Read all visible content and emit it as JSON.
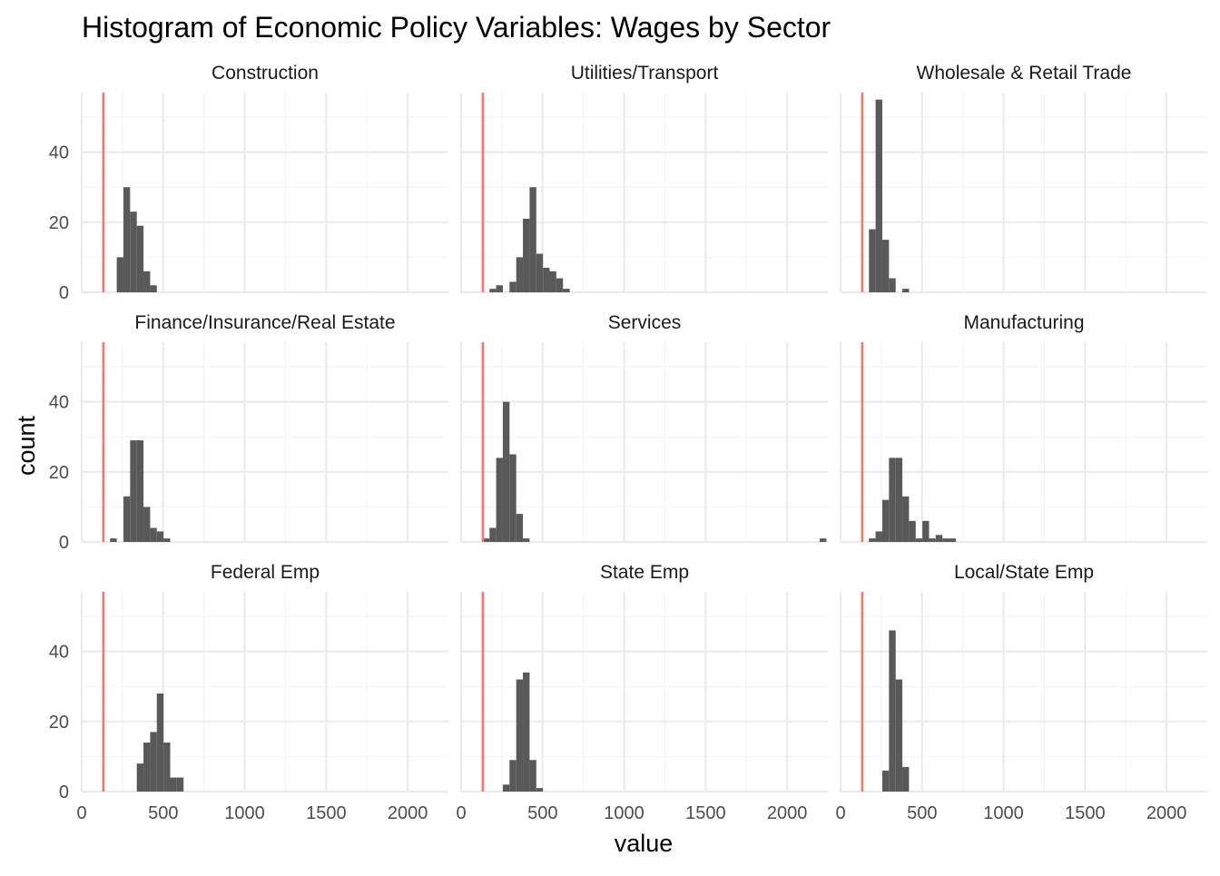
{
  "chart_data": {
    "type": "bar",
    "title": "Histogram of Economic Policy Variables: Wages by Sector",
    "xlabel": "value",
    "ylabel": "count",
    "xlim": [
      0,
      2250
    ],
    "ylim": [
      0,
      57
    ],
    "x_ticks": [
      0,
      500,
      1000,
      1500,
      2000
    ],
    "y_ticks": [
      0,
      20,
      40
    ],
    "grid": true,
    "bin_width": 41,
    "reference_line": {
      "value": 133,
      "color": "#F8766D"
    },
    "bar_color": "#595959",
    "panels": [
      {
        "name": "Construction",
        "bins": [
          [
            215,
            10
          ],
          [
            256,
            30
          ],
          [
            297,
            23
          ],
          [
            338,
            19
          ],
          [
            379,
            6
          ],
          [
            420,
            2
          ]
        ]
      },
      {
        "name": "Utilities/Transport",
        "bins": [
          [
            174,
            1
          ],
          [
            215,
            2
          ],
          [
            297,
            3
          ],
          [
            338,
            10
          ],
          [
            379,
            21
          ],
          [
            420,
            30
          ],
          [
            461,
            11
          ],
          [
            502,
            7
          ],
          [
            543,
            6
          ],
          [
            584,
            4
          ],
          [
            625,
            1
          ]
        ]
      },
      {
        "name": "Wholesale & Retail Trade",
        "bins": [
          [
            174,
            18
          ],
          [
            215,
            55
          ],
          [
            256,
            15
          ],
          [
            297,
            4
          ],
          [
            379,
            1
          ]
        ]
      },
      {
        "name": "Finance/Insurance/Real Estate",
        "bins": [
          [
            174,
            1
          ],
          [
            256,
            13
          ],
          [
            297,
            29
          ],
          [
            338,
            29
          ],
          [
            379,
            10
          ],
          [
            420,
            4
          ],
          [
            461,
            3
          ],
          [
            502,
            1
          ]
        ]
      },
      {
        "name": "Services",
        "bins": [
          [
            133,
            1
          ],
          [
            174,
            4
          ],
          [
            215,
            24
          ],
          [
            256,
            40
          ],
          [
            297,
            25
          ],
          [
            338,
            8
          ],
          [
            379,
            1
          ],
          [
            2200,
            1
          ]
        ]
      },
      {
        "name": "Manufacturing",
        "bins": [
          [
            174,
            1
          ],
          [
            215,
            3
          ],
          [
            256,
            12
          ],
          [
            297,
            24
          ],
          [
            338,
            24
          ],
          [
            379,
            13
          ],
          [
            420,
            6
          ],
          [
            461,
            1
          ],
          [
            502,
            6
          ],
          [
            543,
            1
          ],
          [
            584,
            2
          ],
          [
            625,
            1
          ],
          [
            666,
            1
          ]
        ]
      },
      {
        "name": "Federal Emp",
        "bins": [
          [
            338,
            8
          ],
          [
            379,
            14
          ],
          [
            420,
            17
          ],
          [
            461,
            28
          ],
          [
            502,
            14
          ],
          [
            543,
            4
          ],
          [
            584,
            4
          ]
        ]
      },
      {
        "name": "State Emp",
        "bins": [
          [
            256,
            2
          ],
          [
            297,
            9
          ],
          [
            338,
            32
          ],
          [
            379,
            34
          ],
          [
            420,
            9
          ],
          [
            461,
            1
          ]
        ]
      },
      {
        "name": "Local/State Emp",
        "bins": [
          [
            256,
            6
          ],
          [
            297,
            46
          ],
          [
            338,
            32
          ],
          [
            379,
            7
          ]
        ]
      }
    ]
  }
}
